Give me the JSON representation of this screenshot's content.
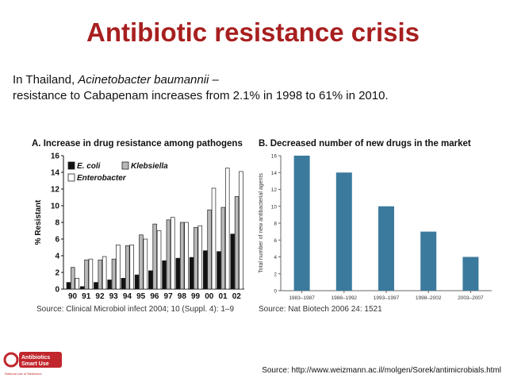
{
  "slide": {
    "title": "Antibiotic resistance crisis",
    "intro_prefix": "In Thailand, ",
    "intro_organism": "Acinetobacter baumannii",
    "intro_suffix": " –",
    "intro_line2": "resistance to Cabapenam increases from 2.1% in 1998 to 61% in 2010.",
    "footer_source": "Source: http://www.weizmann.ac.il/molgen/Sorek/antimicrobials.html"
  },
  "logo": {
    "line1": "Antibiotics",
    "line2": "Smart Use",
    "tagline": "Rational Use of Medicines",
    "color": "#c0262c"
  },
  "chart_data": [
    {
      "type": "bar",
      "title": "A. Increase in drug resistance among pathogens",
      "ylabel": "% Resistant",
      "xlabel": "",
      "ylim": [
        0,
        16
      ],
      "yticks": [
        "0",
        "2",
        "4",
        "6",
        "8",
        "10",
        "12",
        "14",
        "16"
      ],
      "categories": [
        "90",
        "91",
        "92",
        "93",
        "94",
        "95",
        "96",
        "97",
        "98",
        "99",
        "00",
        "01",
        "02"
      ],
      "series": [
        {
          "name": "E. coli",
          "color": "#111111",
          "values": [
            0.8,
            0.3,
            0.8,
            1.1,
            1.3,
            1.7,
            2.2,
            3.4,
            3.7,
            3.8,
            4.6,
            4.5,
            6.6
          ]
        },
        {
          "name": "Klebsiella",
          "color": "#b8b8b8",
          "values": [
            2.6,
            3.5,
            3.5,
            3.6,
            5.2,
            6.5,
            7.8,
            8.3,
            8.0,
            7.4,
            9.5,
            9.8,
            11.1
          ]
        },
        {
          "name": "Enterobacter",
          "color": "#ffffff",
          "values": [
            1.3,
            3.6,
            3.9,
            5.3,
            5.3,
            6.0,
            7.0,
            8.6,
            8.0,
            7.6,
            12.1,
            14.5,
            14.1
          ]
        }
      ],
      "source": "Source: Clinical Microbiol infect 2004; 10 (Suppl. 4): 1–9",
      "grid": false,
      "legend": "top-left"
    },
    {
      "type": "bar",
      "title": "B. Decreased number of new drugs in the market",
      "ylabel": "Total number of new antibacterial agents",
      "xlabel": "",
      "ylim": [
        0,
        16
      ],
      "yticks": [
        "0",
        "2",
        "4",
        "6",
        "8",
        "10",
        "12",
        "14",
        "16"
      ],
      "categories": [
        "1983–1987",
        "1988–1992",
        "1993–1997",
        "1998–2002",
        "2003–2007"
      ],
      "values": [
        16,
        14,
        10,
        7,
        4
      ],
      "color": "#3b7a9d",
      "source": "Source: Nat Biotech 2006 24: 1521",
      "grid": false,
      "legend": "none"
    }
  ]
}
